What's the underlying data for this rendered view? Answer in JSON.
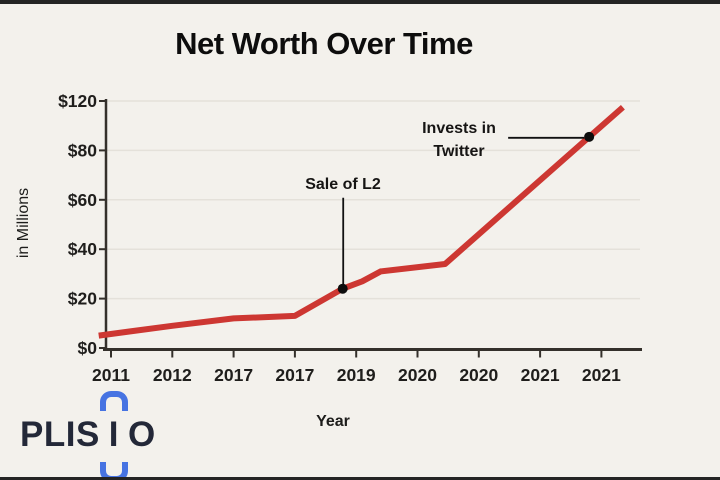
{
  "title": "Net Worth Over Time",
  "y_axis_title": "in Millions",
  "x_axis_title": "Year",
  "colors": {
    "background": "#f3f1ec",
    "frame_bar": "#242424",
    "line": "#cd3732",
    "axis": "#34302b",
    "grid": "#e4e1da",
    "tick_text": "#1f1e1c",
    "annotation_dot": "#0d0d0d",
    "logo_text": "#232838",
    "logo_bracket": "#4673e2"
  },
  "logo": {
    "brand": "PLISIO",
    "text_before": "PLIS",
    "bracket_letter": "I",
    "text_after": "O"
  },
  "chart_data": {
    "type": "line",
    "title": "Net Worth Over Time",
    "xlabel": "Year",
    "ylabel": "in Millions",
    "legend": "none",
    "grid": "horizontal",
    "x_tick_labels": [
      "2011",
      "2012",
      "2017",
      "2017",
      "2019",
      "2020",
      "2020",
      "2021",
      "2021"
    ],
    "y_tick_labels": [
      "$120",
      "$80",
      "$60",
      "$40",
      "$20",
      "$0"
    ],
    "y_tick_values": [
      120,
      80,
      60,
      40,
      20,
      0
    ],
    "values_at_ticks_millions": [
      6,
      9,
      12,
      13,
      27,
      33,
      46,
      62,
      91
    ],
    "end_value_millions": 115,
    "series_points": [
      {
        "x": -0.2,
        "v": 5
      },
      {
        "x": 1.0,
        "v": 9
      },
      {
        "x": 2.0,
        "v": 12
      },
      {
        "x": 3.0,
        "v": 13
      },
      {
        "x": 3.78,
        "v": 24
      },
      {
        "x": 4.1,
        "v": 27
      },
      {
        "x": 4.4,
        "v": 31
      },
      {
        "x": 5.45,
        "v": 34
      },
      {
        "x": 8.35,
        "v": 115
      }
    ],
    "annotations": [
      {
        "label": "Sale of L2",
        "x": 3.78,
        "value_millions": 24,
        "placement": "above"
      },
      {
        "label": "Invests in Twitter",
        "line1": "Invests in",
        "line2": "Twitter",
        "x": 7.8,
        "value_millions": 91,
        "placement": "left"
      }
    ]
  }
}
